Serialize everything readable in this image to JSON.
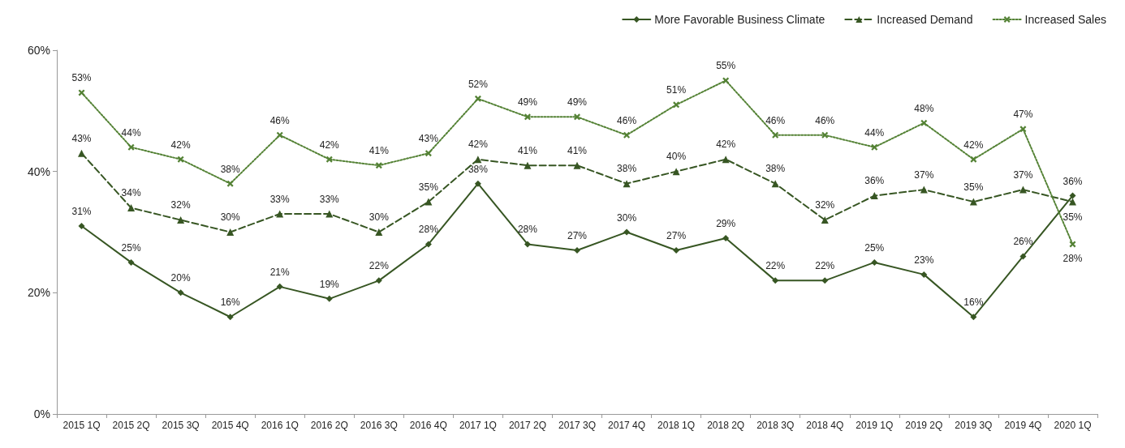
{
  "chart_data": {
    "type": "line",
    "categories": [
      "2015 1Q",
      "2015 2Q",
      "2015 3Q",
      "2015 4Q",
      "2016 1Q",
      "2016 2Q",
      "2016 3Q",
      "2016 4Q",
      "2017 1Q",
      "2017 2Q",
      "2017 3Q",
      "2017 4Q",
      "2018 1Q",
      "2018 2Q",
      "2018 3Q",
      "2018 4Q",
      "2019 1Q",
      "2019 2Q",
      "2019 3Q",
      "2019 4Q",
      "2020 1Q"
    ],
    "series": [
      {
        "name": "More Favorable Business Climate",
        "color": "#375623",
        "marker": "diamond",
        "line_style": "solid",
        "values": [
          31,
          25,
          20,
          16,
          21,
          19,
          22,
          28,
          38,
          28,
          27,
          30,
          27,
          29,
          22,
          22,
          25,
          23,
          16,
          26,
          36
        ],
        "value_labels": [
          "31%",
          "25%",
          "20%",
          "16%",
          "21%",
          "19%",
          "22%",
          "28%",
          "38%",
          "28%",
          "27%",
          "30%",
          "27%",
          "29%",
          "22%",
          "22%",
          "25%",
          "23%",
          "16%",
          "26%",
          "36%"
        ]
      },
      {
        "name": "Increased Demand",
        "color": "#375623",
        "marker": "triangle",
        "line_style": "dashed",
        "values": [
          43,
          34,
          32,
          30,
          33,
          33,
          30,
          35,
          42,
          41,
          41,
          38,
          40,
          42,
          38,
          32,
          36,
          37,
          35,
          37,
          35
        ],
        "value_labels": [
          "43%",
          "34%",
          "32%",
          "30%",
          "33%",
          "33%",
          "30%",
          "35%",
          "42%",
          "41%",
          "41%",
          "38%",
          "40%",
          "42%",
          "38%",
          "32%",
          "36%",
          "37%",
          "35%",
          "37%",
          "35%"
        ]
      },
      {
        "name": "Increased Sales",
        "color": "#548235",
        "marker": "cross",
        "line_style": "dotted",
        "values": [
          53,
          44,
          42,
          38,
          46,
          42,
          41,
          43,
          52,
          49,
          49,
          46,
          51,
          55,
          46,
          46,
          44,
          48,
          42,
          47,
          28
        ],
        "value_labels": [
          "53%",
          "44%",
          "42%",
          "38%",
          "46%",
          "42%",
          "41%",
          "43%",
          "52%",
          "49%",
          "49%",
          "46%",
          "51%",
          "55%",
          "46%",
          "46%",
          "44%",
          "48%",
          "42%",
          "47%",
          "28%"
        ]
      }
    ],
    "ylim": [
      0,
      60
    ],
    "yticks": [
      {
        "value": 0,
        "label": "0%"
      },
      {
        "value": 20,
        "label": "20%"
      },
      {
        "value": 40,
        "label": "40%"
      },
      {
        "value": 60,
        "label": "60%"
      }
    ],
    "grid": false,
    "legend": "top right"
  }
}
